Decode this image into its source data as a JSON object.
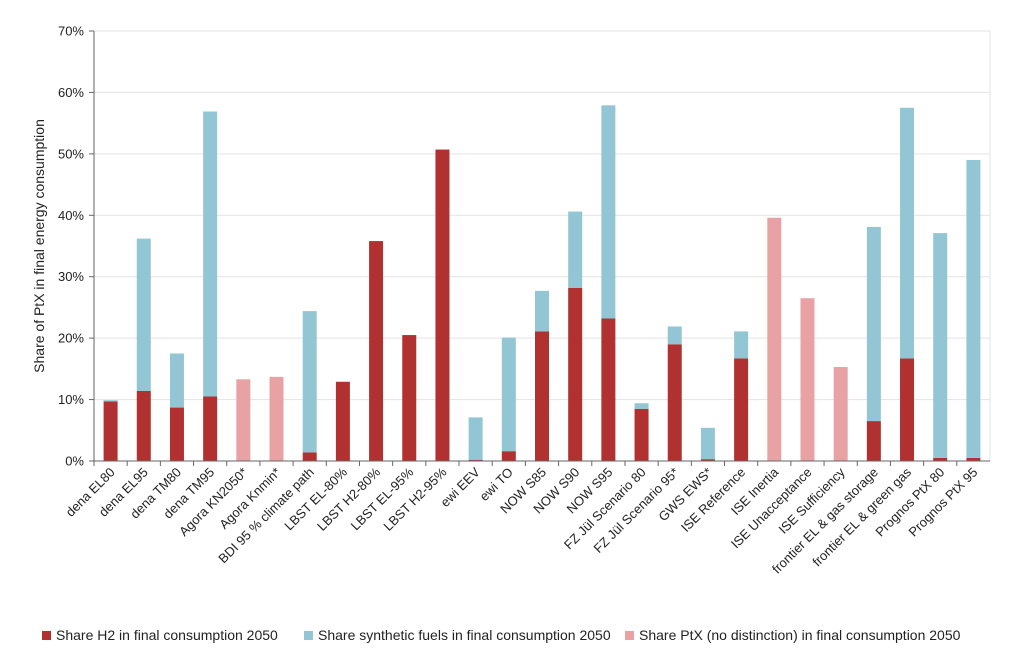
{
  "chart_data": {
    "type": "bar",
    "stacked": true,
    "title": "",
    "xlabel": "",
    "ylabel": "Share of PtX in final energy consumption",
    "ylim": [
      0,
      70
    ],
    "yticks": [
      0,
      10,
      20,
      30,
      40,
      50,
      60,
      70
    ],
    "ytick_labels": [
      "0%",
      "10%",
      "20%",
      "30%",
      "40%",
      "50%",
      "60%",
      "70%"
    ],
    "grid": true,
    "legend_position": "bottom",
    "categories": [
      "dena EL80",
      "dena EL95",
      "dena TM80",
      "dena TM95",
      "Agora KN2050*",
      "Agora Knmin*",
      "BDI 95 % climate path",
      "LBST EL-80%",
      "LBST H2-80%",
      "LBST EL-95%",
      "LBST H2-95%",
      "ewi EEV",
      "ewi TO",
      "NOW S85",
      "NOW S90",
      "NOW S95",
      "FZ Jül Scenario 80",
      "FZ Jül Scenario 95*",
      "GWS EWS*",
      "ISE Reference",
      "ISE Inertia",
      "ISE Unacceptance",
      "ISE Sufficiency",
      "frontier EL & gas storage",
      "frontier EL & green gas",
      "Prognos PtX 80",
      "Prognos PtX 95"
    ],
    "series": [
      {
        "name": "Share H2 in final consumption 2050",
        "color": "#b0312f",
        "values": [
          9.7,
          11.4,
          8.7,
          10.5,
          0,
          0,
          1.4,
          12.9,
          35.8,
          20.5,
          50.7,
          0.2,
          1.6,
          21.1,
          28.2,
          23.2,
          8.5,
          19.0,
          0.3,
          16.7,
          0,
          0,
          0,
          6.5,
          16.7,
          0.5,
          0.5
        ]
      },
      {
        "name": "Share synthetic fuels in final consumption 2050",
        "color": "#92c6d4",
        "values": [
          0.2,
          24.8,
          8.8,
          46.4,
          0,
          0,
          23.0,
          0,
          0,
          0,
          0,
          6.9,
          18.5,
          6.6,
          12.4,
          34.7,
          0.9,
          2.9,
          5.1,
          4.4,
          0,
          0,
          0,
          31.6,
          40.8,
          36.6,
          48.5
        ]
      },
      {
        "name": "Share PtX (no distinction) in final consumption 2050",
        "color": "#e9a2a3",
        "values": [
          0,
          0,
          0,
          0,
          13.3,
          13.7,
          0,
          0,
          0,
          0,
          0,
          0,
          0,
          0,
          0,
          0,
          0,
          0,
          0,
          0,
          39.6,
          26.5,
          15.3,
          0,
          0,
          0,
          0
        ]
      }
    ]
  }
}
